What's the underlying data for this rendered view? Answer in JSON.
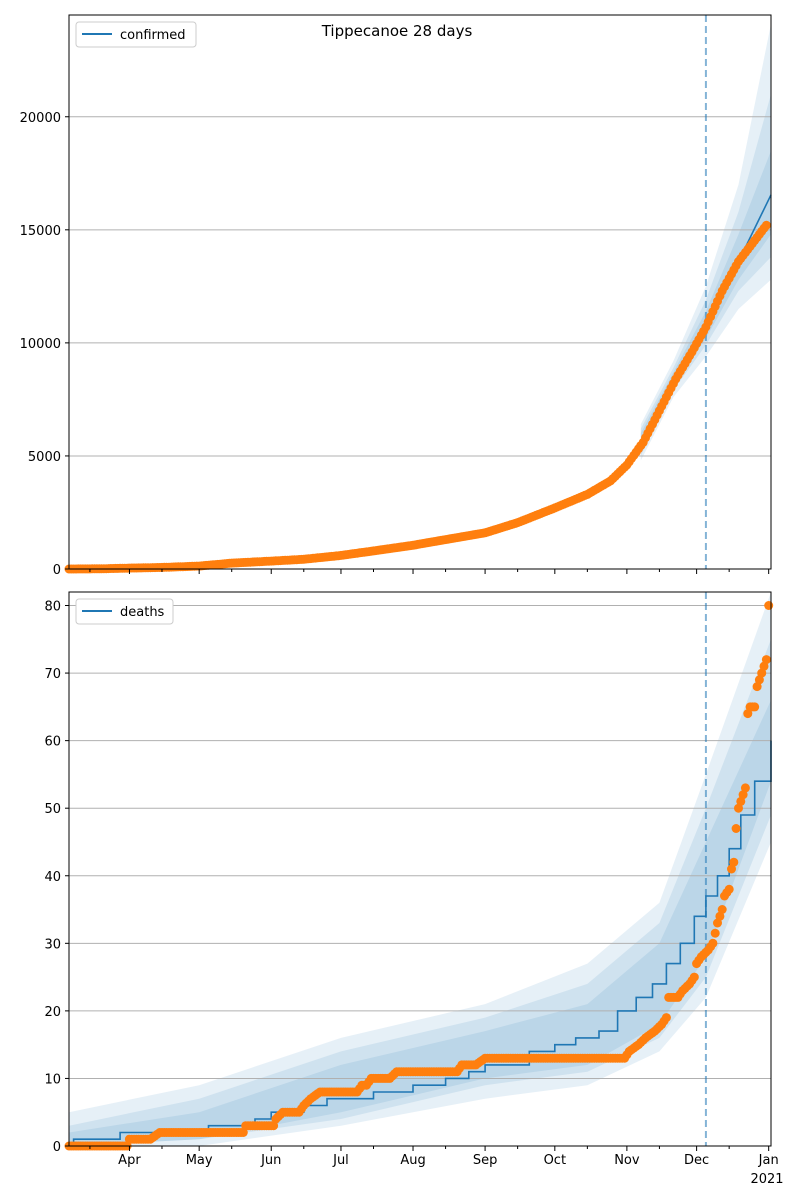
{
  "figure": {
    "title": "Tippecanoe 28 days"
  },
  "chart_data": [
    {
      "type": "line",
      "title": "Tippecanoe 28 days",
      "legend": {
        "label": "confirmed",
        "placement": "top-left"
      },
      "xlabel": "",
      "ylabel": "",
      "x_type": "date",
      "xlim": [
        "2020-03-06",
        "2021-01-02"
      ],
      "ylim": [
        0,
        24500
      ],
      "yticks": [
        0,
        5000,
        10000,
        15000,
        20000
      ],
      "ytick_labels": [
        "0",
        "5000",
        "10000",
        "15000",
        "20000"
      ],
      "grid": "horizontal",
      "forecast_start": "2020-12-05",
      "colors": {
        "model": "#1f77b4",
        "observed": "#ff7f0e",
        "band": "#1f77b4",
        "vline": "#1f77b4"
      },
      "model_line": {
        "name": "confirmed",
        "points": [
          [
            "2020-03-06",
            0
          ],
          [
            "2020-03-20",
            20
          ],
          [
            "2020-04-01",
            40
          ],
          [
            "2020-04-15",
            60
          ],
          [
            "2020-05-01",
            120
          ],
          [
            "2020-05-15",
            250
          ],
          [
            "2020-06-01",
            350
          ],
          [
            "2020-06-15",
            430
          ],
          [
            "2020-07-01",
            600
          ],
          [
            "2020-07-15",
            800
          ],
          [
            "2020-08-01",
            1050
          ],
          [
            "2020-08-15",
            1300
          ],
          [
            "2020-09-01",
            1600
          ],
          [
            "2020-09-15",
            2050
          ],
          [
            "2020-10-01",
            2700
          ],
          [
            "2020-10-15",
            3300
          ],
          [
            "2020-10-25",
            3900
          ],
          [
            "2020-11-01",
            4600
          ],
          [
            "2020-11-08",
            5600
          ],
          [
            "2020-11-15",
            7000
          ],
          [
            "2020-11-22",
            8400
          ],
          [
            "2020-11-29",
            9600
          ],
          [
            "2020-12-05",
            10700
          ],
          [
            "2020-12-12",
            12200
          ],
          [
            "2020-12-19",
            13600
          ],
          [
            "2021-01-02",
            16550
          ]
        ]
      },
      "observed": {
        "points": [
          [
            "2020-03-06",
            0
          ],
          [
            "2020-03-20",
            10
          ],
          [
            "2020-04-01",
            40
          ],
          [
            "2020-04-15",
            70
          ],
          [
            "2020-05-01",
            130
          ],
          [
            "2020-05-15",
            260
          ],
          [
            "2020-06-01",
            350
          ],
          [
            "2020-06-15",
            430
          ],
          [
            "2020-07-01",
            600
          ],
          [
            "2020-07-15",
            800
          ],
          [
            "2020-08-01",
            1050
          ],
          [
            "2020-08-15",
            1300
          ],
          [
            "2020-09-01",
            1600
          ],
          [
            "2020-09-15",
            2050
          ],
          [
            "2020-10-01",
            2700
          ],
          [
            "2020-10-15",
            3300
          ],
          [
            "2020-10-25",
            3900
          ],
          [
            "2020-11-01",
            4600
          ],
          [
            "2020-11-08",
            5600
          ],
          [
            "2020-11-15",
            7000
          ],
          [
            "2020-11-22",
            8400
          ],
          [
            "2020-11-29",
            9600
          ],
          [
            "2020-12-05",
            10700
          ],
          [
            "2020-12-12",
            12300
          ],
          [
            "2020-12-19",
            13600
          ],
          [
            "2020-12-25",
            14400
          ],
          [
            "2020-12-31",
            15200
          ]
        ]
      },
      "bands": [
        {
          "points": [
            [
              "2020-11-07",
              4800,
              6400
            ],
            [
              "2020-11-21",
              7600,
              9200
            ],
            [
              "2020-12-05",
              9400,
              12500
            ],
            [
              "2020-12-19",
              11500,
              17000
            ],
            [
              "2021-01-02",
              12800,
              24100
            ]
          ]
        },
        {
          "points": [
            [
              "2020-11-07",
              5000,
              6200
            ],
            [
              "2020-11-21",
              7900,
              8900
            ],
            [
              "2020-12-05",
              9900,
              11900
            ],
            [
              "2020-12-19",
              12300,
              15800
            ],
            [
              "2021-01-02",
              13800,
              21000
            ]
          ]
        },
        {
          "points": [
            [
              "2020-11-07",
              5200,
              6000
            ],
            [
              "2020-11-21",
              8100,
              8700
            ],
            [
              "2020-12-05",
              10200,
              11400
            ],
            [
              "2020-12-19",
              12800,
              14800
            ],
            [
              "2021-01-02",
              14800,
              18500
            ]
          ]
        }
      ]
    },
    {
      "type": "line",
      "title": "",
      "legend": {
        "label": "deaths",
        "placement": "top-left"
      },
      "xlabel": "",
      "ylabel": "",
      "x_type": "date",
      "xlim": [
        "2020-03-06",
        "2021-01-02"
      ],
      "ylim": [
        0,
        82
      ],
      "yticks": [
        0,
        10,
        20,
        30,
        40,
        50,
        60,
        70,
        80
      ],
      "ytick_labels": [
        "0",
        "10",
        "20",
        "30",
        "40",
        "50",
        "60",
        "70",
        "80"
      ],
      "xticks": [
        "2020-04-01",
        "2020-05-01",
        "2020-06-01",
        "2020-07-01",
        "2020-08-01",
        "2020-09-01",
        "2020-10-01",
        "2020-11-01",
        "2020-12-01",
        "2021-01-01"
      ],
      "xtick_labels": [
        "Apr",
        "May",
        "Jun",
        "Jul",
        "Aug",
        "Sep",
        "Oct",
        "Nov",
        "Dec",
        "Jan"
      ],
      "xtick_year_label": "2021",
      "grid": "horizontal",
      "forecast_start": "2020-12-05",
      "colors": {
        "model": "#1f77b4",
        "observed": "#ff7f0e",
        "band": "#1f77b4",
        "vline": "#1f77b4"
      },
      "model_line": {
        "name": "deaths",
        "steps": [
          [
            "2020-03-06",
            0
          ],
          [
            "2020-03-08",
            1
          ],
          [
            "2020-03-22",
            1
          ],
          [
            "2020-03-28",
            2
          ],
          [
            "2020-04-20",
            2
          ],
          [
            "2020-05-05",
            3
          ],
          [
            "2020-05-25",
            4
          ],
          [
            "2020-06-01",
            5
          ],
          [
            "2020-06-15",
            6
          ],
          [
            "2020-06-25",
            7
          ],
          [
            "2020-07-15",
            8
          ],
          [
            "2020-08-01",
            9
          ],
          [
            "2020-08-15",
            10
          ],
          [
            "2020-08-25",
            11
          ],
          [
            "2020-09-01",
            12
          ],
          [
            "2020-09-20",
            14
          ],
          [
            "2020-10-01",
            15
          ],
          [
            "2020-10-10",
            16
          ],
          [
            "2020-10-20",
            17
          ],
          [
            "2020-10-28",
            20
          ],
          [
            "2020-11-05",
            22
          ],
          [
            "2020-11-12",
            24
          ],
          [
            "2020-11-18",
            27
          ],
          [
            "2020-11-24",
            30
          ],
          [
            "2020-11-30",
            34
          ],
          [
            "2020-12-05",
            37
          ],
          [
            "2020-12-10",
            40
          ],
          [
            "2020-12-15",
            44
          ],
          [
            "2020-12-20",
            49
          ],
          [
            "2020-12-26",
            54
          ],
          [
            "2021-01-02",
            60
          ]
        ]
      },
      "observed": {
        "points": [
          [
            "2020-03-06",
            0
          ],
          [
            "2020-03-31",
            0
          ],
          [
            "2020-04-01",
            1
          ],
          [
            "2020-04-10",
            1
          ],
          [
            "2020-04-14",
            2
          ],
          [
            "2020-05-20",
            2
          ],
          [
            "2020-05-21",
            3
          ],
          [
            "2020-06-02",
            3
          ],
          [
            "2020-06-03",
            4
          ],
          [
            "2020-06-06",
            5
          ],
          [
            "2020-06-13",
            5
          ],
          [
            "2020-06-15",
            6
          ],
          [
            "2020-06-18",
            7
          ],
          [
            "2020-06-22",
            8
          ],
          [
            "2020-07-08",
            8
          ],
          [
            "2020-07-10",
            9
          ],
          [
            "2020-07-12",
            9
          ],
          [
            "2020-07-14",
            10
          ],
          [
            "2020-07-22",
            10
          ],
          [
            "2020-07-25",
            11
          ],
          [
            "2020-08-20",
            11
          ],
          [
            "2020-08-22",
            12
          ],
          [
            "2020-08-28",
            12
          ],
          [
            "2020-09-01",
            13
          ],
          [
            "2020-10-31",
            13
          ],
          [
            "2020-11-02",
            14
          ],
          [
            "2020-11-06",
            15
          ],
          [
            "2020-11-09",
            16
          ],
          [
            "2020-11-13",
            17
          ],
          [
            "2020-11-16",
            18
          ],
          [
            "2020-11-18",
            19
          ],
          [
            "2020-11-19",
            22
          ],
          [
            "2020-11-23",
            22
          ],
          [
            "2020-11-25",
            23
          ],
          [
            "2020-11-28",
            24
          ],
          [
            "2020-11-30",
            25
          ],
          [
            "2020-12-01",
            27
          ],
          [
            "2020-12-03",
            28
          ],
          [
            "2020-12-06",
            29
          ],
          [
            "2020-12-08",
            30
          ],
          [
            "2020-12-10",
            33
          ],
          [
            "2020-12-12",
            35
          ],
          [
            "2020-12-13",
            37
          ],
          [
            "2020-12-15",
            38
          ],
          [
            "2020-12-16",
            41
          ],
          [
            "2020-12-17",
            42
          ],
          [
            "2020-12-18",
            47
          ],
          [
            "2020-12-19",
            50
          ],
          [
            "2020-12-20",
            51
          ],
          [
            "2020-12-21",
            52
          ],
          [
            "2020-12-22",
            53
          ],
          [
            "2020-12-23",
            64
          ],
          [
            "2020-12-24",
            65
          ],
          [
            "2020-12-26",
            65
          ],
          [
            "2020-12-27",
            68
          ],
          [
            "2020-12-28",
            69
          ],
          [
            "2020-12-29",
            70
          ],
          [
            "2020-12-30",
            71
          ],
          [
            "2020-12-31",
            72
          ],
          [
            "2021-01-01",
            80
          ]
        ]
      },
      "bands": [
        {
          "points": [
            [
              "2020-03-06",
              0,
              5
            ],
            [
              "2020-05-01",
              0,
              9
            ],
            [
              "2020-07-01",
              3,
              16
            ],
            [
              "2020-09-01",
              7,
              21
            ],
            [
              "2020-10-15",
              9,
              27
            ],
            [
              "2020-11-15",
              14,
              36
            ],
            [
              "2020-12-05",
              22,
              55
            ],
            [
              "2021-01-02",
              45,
              82
            ]
          ]
        },
        {
          "points": [
            [
              "2020-03-06",
              0,
              3
            ],
            [
              "2020-05-01",
              1,
              7
            ],
            [
              "2020-07-01",
              4,
              14
            ],
            [
              "2020-09-01",
              9,
              19
            ],
            [
              "2020-10-15",
              11,
              24
            ],
            [
              "2020-11-15",
              16,
              33
            ],
            [
              "2020-12-05",
              25,
              50
            ],
            [
              "2021-01-02",
              49,
              75
            ]
          ]
        },
        {
          "points": [
            [
              "2020-03-06",
              0,
              2
            ],
            [
              "2020-05-01",
              1,
              5
            ],
            [
              "2020-07-01",
              5,
              12
            ],
            [
              "2020-09-01",
              10,
              17
            ],
            [
              "2020-10-15",
              12,
              21
            ],
            [
              "2020-11-15",
              18,
              30
            ],
            [
              "2020-12-05",
              28,
              45
            ],
            [
              "2021-01-02",
              54,
              66
            ]
          ]
        }
      ]
    }
  ]
}
